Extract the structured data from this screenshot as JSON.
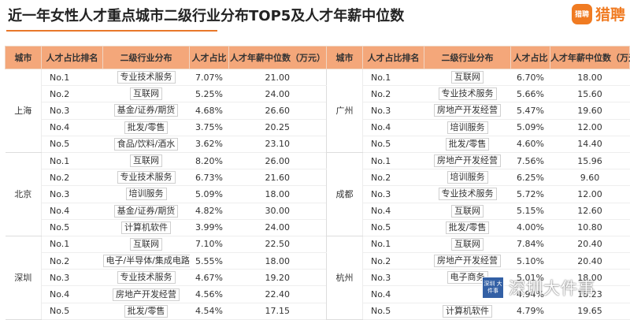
{
  "title": "近一年女性人才重点城市二级行业分布TOP5及人才年薪中位数",
  "logo": {
    "badge": "猎聘",
    "text": "猎聘"
  },
  "headers": [
    "城市",
    "人才占比排名",
    "二级行业分布",
    "人才占比",
    "人才年薪中位数（万元）"
  ],
  "left_groups": [
    {
      "city": "上海",
      "rows": [
        [
          "No.1",
          "专业技术服务",
          "7.07%",
          "21.00"
        ],
        [
          "No.2",
          "互联网",
          "5.25%",
          "24.00"
        ],
        [
          "No.3",
          "基金/证券/期货",
          "4.68%",
          "26.60"
        ],
        [
          "No.4",
          "批发/零售",
          "3.75%",
          "20.25"
        ],
        [
          "No.5",
          "食品/饮料/酒水",
          "3.62%",
          "23.10"
        ]
      ]
    },
    {
      "city": "北京",
      "rows": [
        [
          "No.1",
          "互联网",
          "8.20%",
          "26.00"
        ],
        [
          "No.2",
          "专业技术服务",
          "6.73%",
          "21.60"
        ],
        [
          "No.3",
          "培训服务",
          "5.09%",
          "18.00"
        ],
        [
          "No.4",
          "基金/证券/期货",
          "4.82%",
          "30.00"
        ],
        [
          "No.5",
          "计算机软件",
          "3.99%",
          "24.00"
        ]
      ]
    },
    {
      "city": "深圳",
      "rows": [
        [
          "No.1",
          "互联网",
          "7.10%",
          "22.50"
        ],
        [
          "No.2",
          "电子/半导体/集成电路",
          "5.55%",
          "18.00"
        ],
        [
          "No.3",
          "专业技术服务",
          "4.67%",
          "19.20"
        ],
        [
          "No.4",
          "房地产开发经营",
          "4.56%",
          "22.40"
        ],
        [
          "No.5",
          "批发/零售",
          "4.54%",
          "17.15"
        ]
      ]
    }
  ],
  "right_groups": [
    {
      "city": "广州",
      "rows": [
        [
          "No.1",
          "互联网",
          "6.70%",
          "18.00"
        ],
        [
          "No.2",
          "专业技术服务",
          "5.66%",
          "15.60"
        ],
        [
          "No.3",
          "房地产开发经营",
          "5.47%",
          "19.60"
        ],
        [
          "No.4",
          "培训服务",
          "5.09%",
          "12.00"
        ],
        [
          "No.5",
          "批发/零售",
          "4.60%",
          "14.40"
        ]
      ]
    },
    {
      "city": "成都",
      "rows": [
        [
          "No.1",
          "房地产开发经营",
          "7.56%",
          "15.96"
        ],
        [
          "No.2",
          "培训服务",
          "6.25%",
          "9.60"
        ],
        [
          "No.3",
          "专业技术服务",
          "5.72%",
          "12.00"
        ],
        [
          "No.4",
          "互联网",
          "5.15%",
          "12.60"
        ],
        [
          "No.5",
          "批发/零售",
          "4.00%",
          "10.80"
        ]
      ]
    },
    {
      "city": "杭州",
      "rows": [
        [
          "No.1",
          "互联网",
          "7.84%",
          "20.40"
        ],
        [
          "No.2",
          "房地产开发经营",
          "5.10%",
          "20.40"
        ],
        [
          "No.3",
          "电子商务",
          "5.01%",
          "18.00"
        ],
        [
          "No.4",
          "",
          "4.94%",
          "18.23"
        ],
        [
          "No.5",
          "计算机软件",
          "4.79%",
          "19.65"
        ]
      ]
    }
  ],
  "watermark": {
    "badge": "深圳 大件事",
    "text": "深圳大件事"
  },
  "colors": {
    "header_bg": "#f4a77a",
    "accent": "#e8782a",
    "logo": "#f07b22",
    "watermark_badge": "#1d4f9c"
  }
}
